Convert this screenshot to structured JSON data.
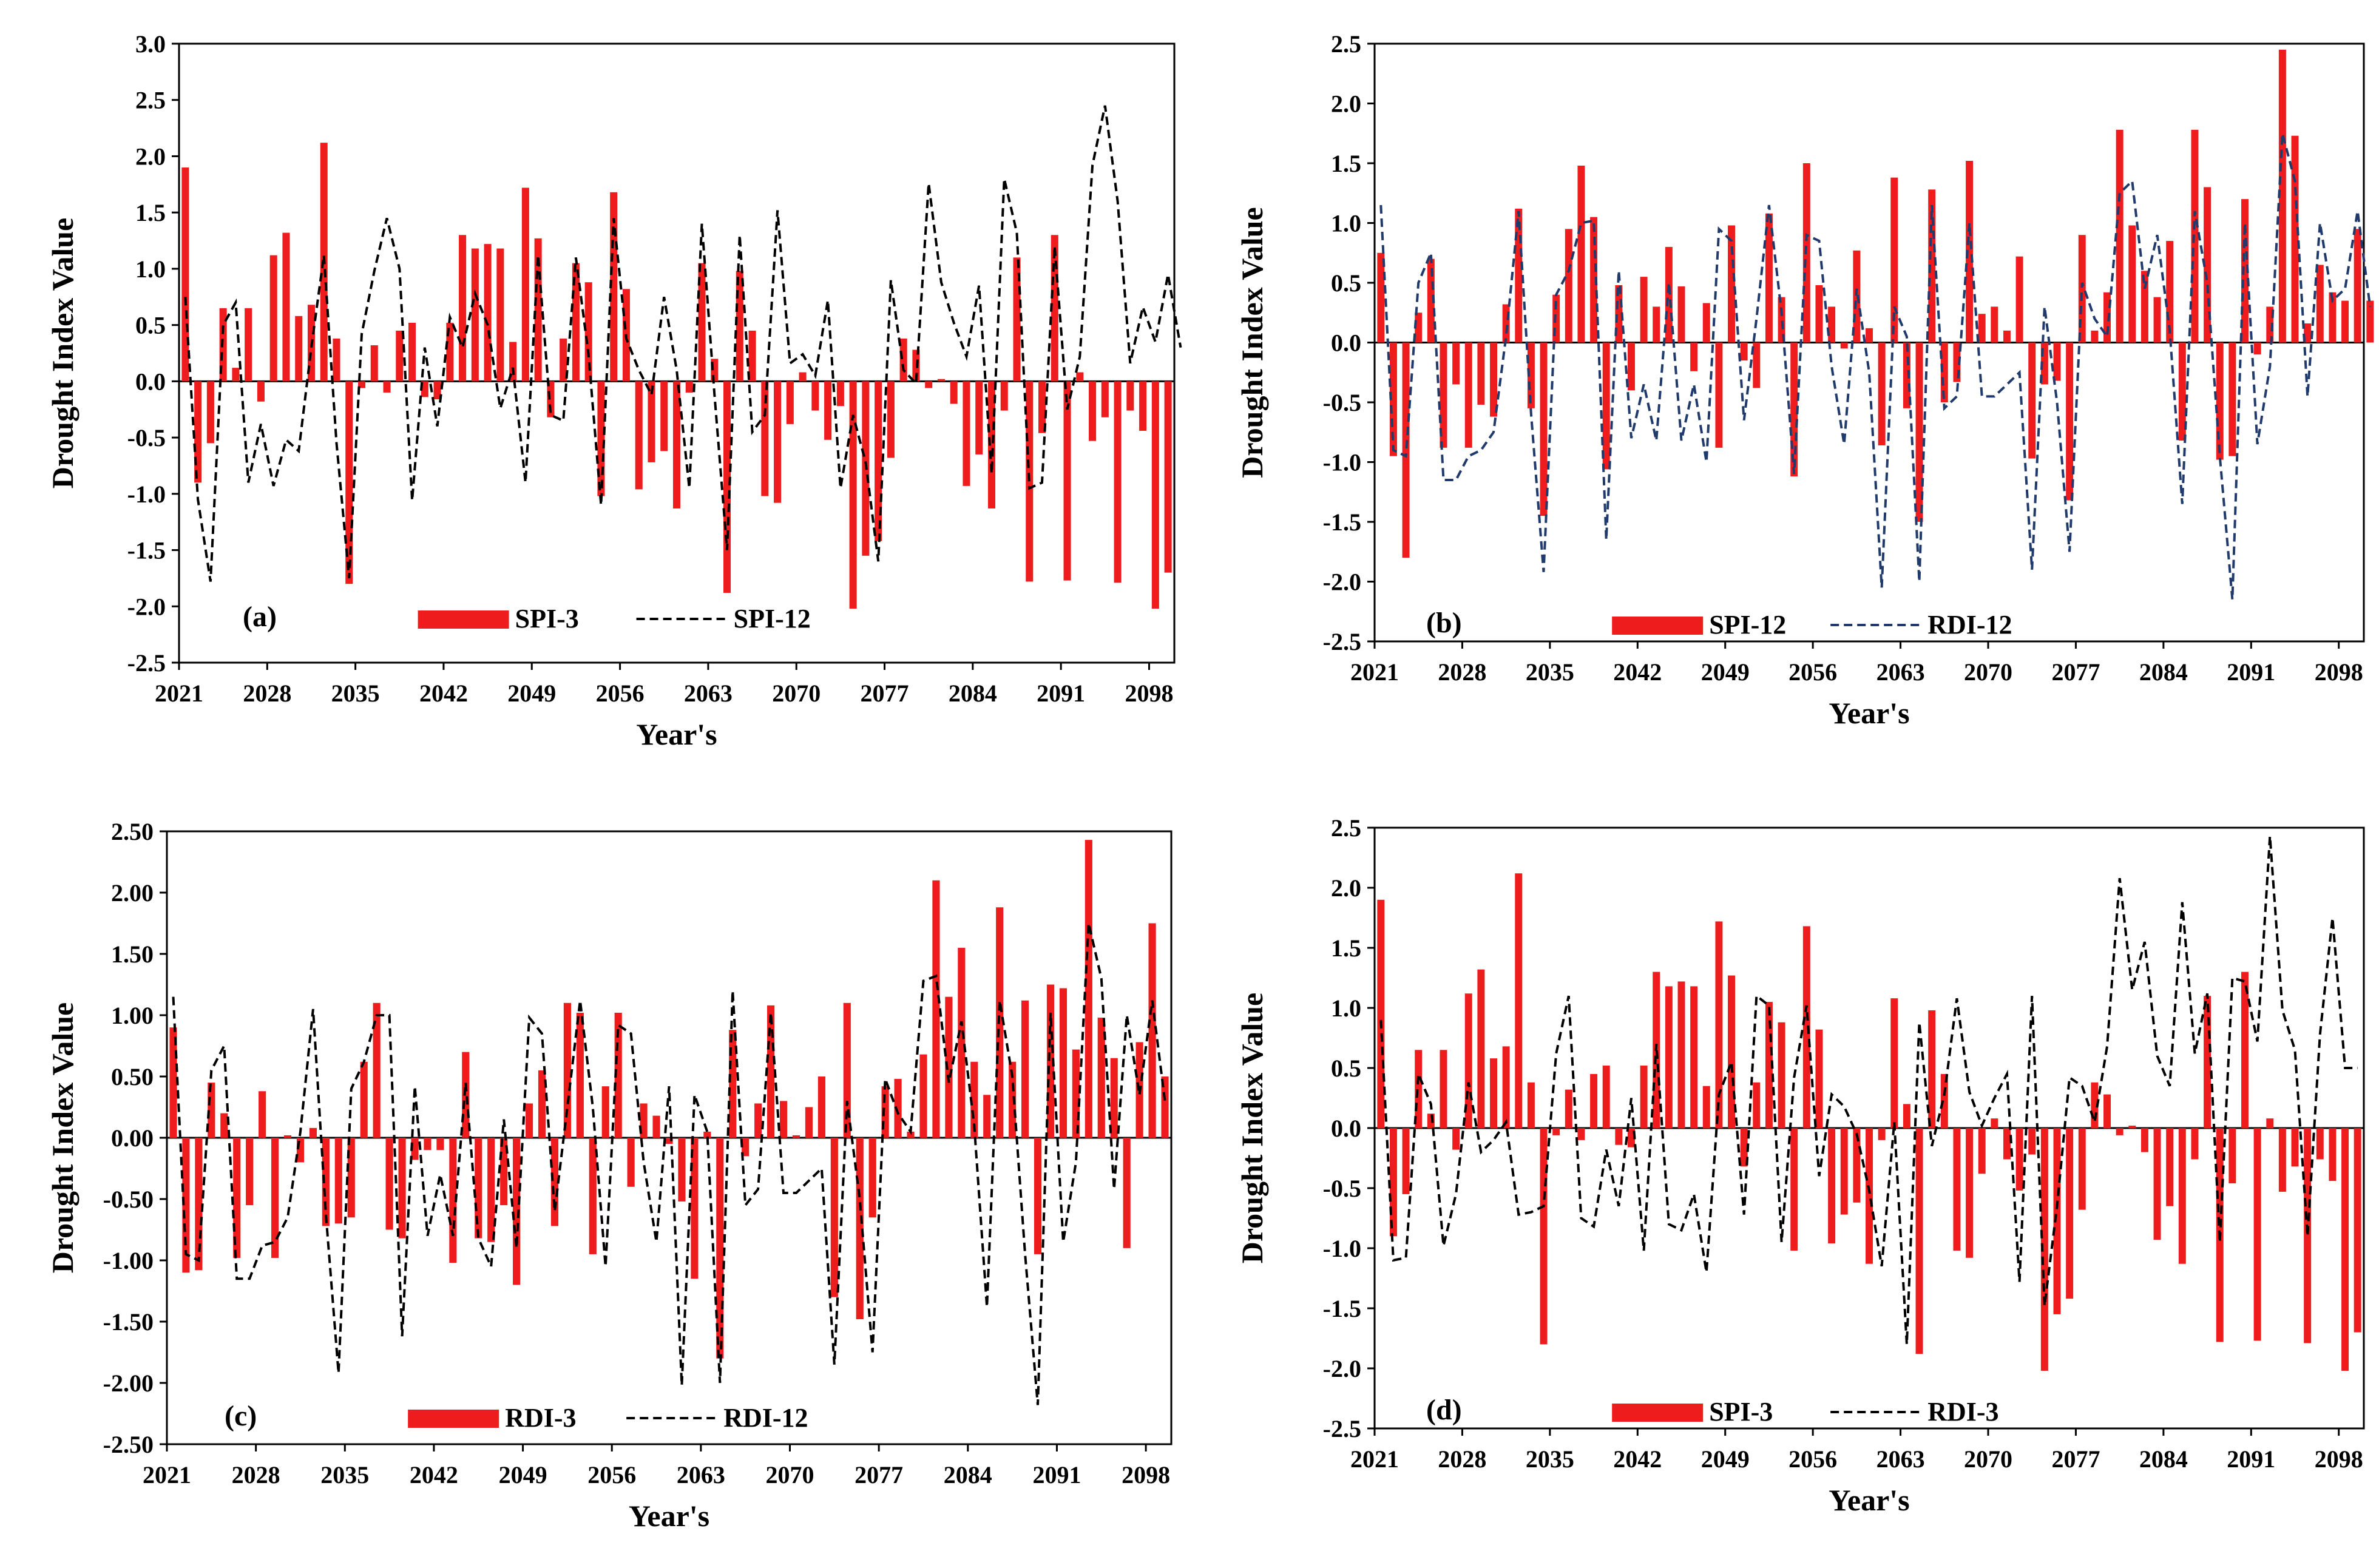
{
  "chart_data": [
    {
      "type": "bar",
      "panel_label": "(a)",
      "ylabel": "Drought Index Value",
      "xlabel": "Year's",
      "yticks": [
        "3.0",
        "2.5",
        "2.0",
        "1.5",
        "1.0",
        "0.5",
        "0.0",
        "-0.5",
        "-1.0",
        "-1.5",
        "-2.0",
        "-2.5"
      ],
      "xticks": [
        "2021",
        "2028",
        "2035",
        "2042",
        "2049",
        "2056",
        "2063",
        "2070",
        "2077",
        "2084",
        "2091",
        "2098"
      ],
      "ylim": [
        -2.5,
        3.0
      ],
      "xlim": [
        2021,
        2100
      ],
      "grid": false,
      "legend": {
        "position": "bottom",
        "entries": [
          "SPI-3",
          "SPI-12"
        ]
      },
      "series": [
        {
          "name": "SPI-3",
          "kind": "bar",
          "color": "#ee1c1c",
          "values": [
            1.9,
            -0.9,
            -0.55,
            0.65,
            0.12,
            0.65,
            -0.18,
            1.12,
            1.32,
            0.58,
            0.68,
            2.12,
            0.38,
            -1.8,
            -0.06,
            0.32,
            -0.1,
            0.45,
            0.52,
            -0.14,
            -0.16,
            0.52,
            1.3,
            1.18,
            1.22,
            1.18,
            0.35,
            1.72,
            1.27,
            -0.32,
            0.38,
            1.05,
            0.88,
            -1.02,
            1.68,
            0.82,
            -0.96,
            -0.72,
            -0.62,
            -1.13,
            -0.1,
            1.05,
            0.2,
            -1.88,
            0.98,
            0.45,
            -1.02,
            -1.08,
            -0.38,
            0.08,
            -0.26,
            -0.52,
            -0.22,
            -2.02,
            -1.55,
            -1.42,
            -0.68,
            0.38,
            0.28,
            -0.06,
            0.02,
            -0.2,
            -0.93,
            -0.65,
            -1.13,
            -0.26,
            1.1,
            -1.78,
            -0.46,
            1.3,
            -1.77,
            0.08,
            -0.53,
            -0.32,
            -1.79,
            -0.26,
            -0.44,
            -2.02,
            -1.7
          ]
        },
        {
          "name": "SPI-12",
          "kind": "line",
          "color": "#000000",
          "dash": "dashed",
          "values": [
            0.75,
            -1.05,
            -1.78,
            0.5,
            0.7,
            -0.9,
            -0.38,
            -0.93,
            -0.52,
            -0.62,
            0.3,
            1.12,
            -0.55,
            -1.75,
            0.42,
            0.98,
            1.45,
            1.0,
            -1.06,
            0.3,
            -0.4,
            0.57,
            0.3,
            0.78,
            0.5,
            -0.24,
            0.12,
            -0.9,
            1.12,
            -0.3,
            -0.35,
            1.1,
            0.24,
            -1.1,
            1.45,
            0.38,
            0.1,
            -0.12,
            0.75,
            0.1,
            -0.95,
            1.4,
            -0.12,
            -1.5,
            1.3,
            -0.45,
            -0.3,
            1.52,
            0.16,
            0.24,
            0.05,
            0.72,
            -0.95,
            -0.3,
            -0.72,
            -1.6,
            0.9,
            0.1,
            -0.02,
            1.76,
            0.88,
            0.52,
            0.22,
            0.85,
            -0.82,
            1.8,
            1.32,
            -0.95,
            -0.9,
            1.2,
            -0.25,
            0.22,
            1.92,
            2.45,
            1.6,
            0.16,
            0.66,
            0.35,
            0.95,
            0.3
          ]
        }
      ]
    },
    {
      "type": "bar",
      "panel_label": "(b)",
      "ylabel": "Drought Index Value",
      "xlabel": "Year's",
      "yticks": [
        "2.5",
        "2.0",
        "1.5",
        "1.0",
        "0.5",
        "0.0",
        "-0.5",
        "-1.0",
        "-1.5",
        "-2.0",
        "-2.5"
      ],
      "xticks": [
        "2021",
        "2028",
        "2035",
        "2042",
        "2049",
        "2056",
        "2063",
        "2070",
        "2077",
        "2084",
        "2091",
        "2098"
      ],
      "ylim": [
        -2.5,
        2.5
      ],
      "xlim": [
        2021,
        2100
      ],
      "grid": false,
      "legend": {
        "position": "bottom",
        "entries": [
          "SPI-12",
          "RDI-12"
        ]
      },
      "series": [
        {
          "name": "SPI-12",
          "kind": "bar",
          "color": "#ee1c1c",
          "values": [
            0.75,
            -0.95,
            -1.8,
            0.25,
            0.7,
            -0.88,
            -0.35,
            -0.88,
            -0.52,
            -0.62,
            0.32,
            1.12,
            -0.55,
            -1.45,
            0.4,
            0.95,
            1.48,
            1.05,
            -1.06,
            0.48,
            -0.4,
            0.55,
            0.3,
            0.8,
            0.47,
            -0.24,
            0.33,
            -0.88,
            0.98,
            -0.15,
            -0.38,
            1.08,
            0.38,
            -1.12,
            1.5,
            0.48,
            0.3,
            -0.05,
            0.77,
            0.12,
            -0.86,
            1.38,
            -0.55,
            -1.5,
            1.28,
            -0.5,
            -0.33,
            1.52,
            0.24,
            0.3,
            0.1,
            0.72,
            -0.97,
            -0.35,
            -0.32,
            -1.32,
            0.9,
            0.1,
            0.42,
            1.78,
            0.98,
            0.6,
            0.38,
            0.85,
            -0.82,
            1.78,
            1.3,
            -0.98,
            -0.95,
            1.2,
            -0.1,
            0.3,
            2.45,
            1.73,
            0.16,
            0.65,
            0.42,
            0.35,
            0.95,
            0.35
          ]
        },
        {
          "name": "RDI-12",
          "kind": "line",
          "color": "#1f3a6b",
          "dash": "dashed",
          "values": [
            1.15,
            -0.9,
            -0.95,
            0.5,
            0.75,
            -1.15,
            -1.15,
            -0.95,
            -0.9,
            -0.75,
            0.05,
            1.1,
            -0.6,
            -1.92,
            0.4,
            0.6,
            1.0,
            1.02,
            -1.65,
            0.6,
            -0.8,
            -0.35,
            -0.82,
            0.5,
            -0.82,
            -0.35,
            -1.0,
            0.95,
            0.85,
            -0.65,
            0.2,
            1.15,
            0.25,
            -1.1,
            0.9,
            0.85,
            -0.2,
            -0.85,
            0.45,
            -0.25,
            -2.05,
            0.3,
            0.05,
            -2.0,
            1.15,
            -0.55,
            -0.45,
            1.0,
            -0.45,
            -0.45,
            -0.35,
            -0.25,
            -1.9,
            0.3,
            -0.5,
            -1.75,
            0.5,
            0.2,
            0.05,
            1.25,
            1.35,
            0.45,
            0.9,
            0.1,
            -1.35,
            1.1,
            0.5,
            -0.95,
            -2.15,
            1.0,
            -0.85,
            -0.2,
            1.75,
            1.35,
            -0.45,
            1.0,
            0.35,
            0.45,
            1.1,
            0.3
          ]
        }
      ]
    },
    {
      "type": "bar",
      "panel_label": "(c)",
      "ylabel": "Drought Index Value",
      "xlabel": "Year's",
      "yticks": [
        "2.50",
        "2.00",
        "1.50",
        "1.00",
        "0.50",
        "0.00",
        "-0.50",
        "-1.00",
        "-1.50",
        "-2.00",
        "-2.50"
      ],
      "xticks": [
        "2021",
        "2028",
        "2035",
        "2042",
        "2049",
        "2056",
        "2063",
        "2070",
        "2077",
        "2084",
        "2091",
        "2098"
      ],
      "ylim": [
        -2.5,
        2.5
      ],
      "xlim": [
        2021,
        2100
      ],
      "grid": false,
      "legend": {
        "position": "bottom",
        "entries": [
          "RDI-3",
          "RDI-12"
        ]
      },
      "series": [
        {
          "name": "RDI-3",
          "kind": "bar",
          "color": "#ee1c1c",
          "values": [
            0.9,
            -1.1,
            -1.08,
            0.45,
            0.2,
            -0.98,
            -0.55,
            0.38,
            -0.98,
            0.02,
            -0.2,
            0.08,
            -0.72,
            -0.7,
            -0.65,
            0.62,
            1.1,
            -0.75,
            -0.82,
            -0.18,
            -0.1,
            -0.1,
            -1.02,
            0.7,
            -0.82,
            -0.85,
            -0.55,
            -1.2,
            0.28,
            0.55,
            -0.72,
            1.1,
            1.02,
            -0.95,
            0.42,
            1.02,
            -0.4,
            0.28,
            0.18,
            -0.05,
            -0.52,
            -1.15,
            0.05,
            -1.8,
            0.88,
            -0.15,
            0.28,
            1.08,
            0.3,
            0.02,
            0.25,
            0.5,
            -1.3,
            1.1,
            -1.48,
            -0.65,
            0.42,
            0.48,
            0.05,
            0.68,
            2.1,
            1.15,
            1.55,
            0.62,
            0.35,
            1.88,
            0.62,
            1.12,
            -0.95,
            1.25,
            1.22,
            0.72,
            2.43,
            0.98,
            0.65,
            -0.9,
            0.78,
            1.75,
            0.5
          ]
        },
        {
          "name": "RDI-12",
          "kind": "line",
          "color": "#000000",
          "dash": "dashed",
          "values": [
            1.15,
            -0.95,
            -1.0,
            0.55,
            0.75,
            -1.15,
            -1.15,
            -0.88,
            -0.85,
            -0.65,
            0.05,
            1.05,
            -0.62,
            -1.92,
            0.4,
            0.62,
            1.0,
            1.0,
            -1.62,
            0.42,
            -0.8,
            -0.3,
            -0.8,
            0.45,
            -0.82,
            -1.05,
            0.15,
            -0.9,
            0.98,
            0.85,
            -0.6,
            0.25,
            1.12,
            0.25,
            -1.05,
            0.92,
            0.85,
            -0.2,
            -0.85,
            0.42,
            -2.02,
            0.35,
            0.05,
            -2.0,
            1.2,
            -0.55,
            -0.42,
            1.02,
            -0.45,
            -0.45,
            -0.35,
            -0.25,
            -1.85,
            0.3,
            -0.5,
            -1.75,
            0.48,
            0.2,
            0.05,
            1.28,
            1.32,
            0.45,
            0.95,
            0.1,
            -1.38,
            1.12,
            0.5,
            -0.95,
            -2.18,
            1.02,
            -0.85,
            -0.2,
            1.75,
            1.3,
            -0.42,
            1.0,
            0.35,
            1.12,
            0.3
          ]
        }
      ]
    },
    {
      "type": "bar",
      "panel_label": "(d)",
      "ylabel": "Drought Index Value",
      "xlabel": "Year's",
      "yticks": [
        "2.5",
        "2.0",
        "1.5",
        "1.0",
        "0.5",
        "0.0",
        "-0.5",
        "-1.0",
        "-1.5",
        "-2.0",
        "-2.5"
      ],
      "xticks": [
        "2021",
        "2028",
        "2035",
        "2042",
        "2049",
        "2056",
        "2063",
        "2070",
        "2077",
        "2084",
        "2091",
        "2098"
      ],
      "ylim": [
        -2.5,
        2.5
      ],
      "xlim": [
        2021,
        2100
      ],
      "grid": false,
      "legend": {
        "position": "bottom",
        "entries": [
          "SPI-3",
          "RDI-3"
        ]
      },
      "series": [
        {
          "name": "SPI-3",
          "kind": "bar",
          "color": "#ee1c1c",
          "values": [
            1.9,
            -0.9,
            -0.55,
            0.65,
            0.12,
            0.65,
            -0.18,
            1.12,
            1.32,
            0.58,
            0.68,
            2.12,
            0.38,
            -1.8,
            -0.06,
            0.32,
            -0.1,
            0.45,
            0.52,
            -0.14,
            -0.16,
            0.52,
            1.3,
            1.18,
            1.22,
            1.18,
            0.35,
            1.72,
            1.27,
            -0.32,
            0.38,
            1.05,
            0.88,
            -1.02,
            1.68,
            0.82,
            -0.96,
            -0.72,
            -0.62,
            -1.13,
            -0.1,
            1.08,
            0.2,
            -1.88,
            0.98,
            0.45,
            -1.02,
            -1.08,
            -0.38,
            0.08,
            -0.26,
            -0.52,
            -0.22,
            -2.02,
            -1.55,
            -1.42,
            -0.68,
            0.38,
            0.28,
            -0.06,
            0.02,
            -0.2,
            -0.93,
            -0.65,
            -1.13,
            -0.26,
            1.1,
            -1.78,
            -0.46,
            1.3,
            -1.77,
            0.08,
            -0.53,
            -0.32,
            -1.79,
            -0.26,
            -0.44,
            -2.02,
            -1.7
          ]
        },
        {
          "name": "RDI-3",
          "kind": "line",
          "color": "#000000",
          "dash": "dashed",
          "values": [
            0.9,
            -1.1,
            -1.08,
            0.45,
            0.2,
            -0.98,
            -0.55,
            0.38,
            -0.2,
            -0.1,
            0.05,
            -0.72,
            -0.7,
            -0.65,
            0.62,
            1.1,
            -0.75,
            -0.82,
            -0.18,
            -0.65,
            0.25,
            -1.02,
            0.7,
            -0.8,
            -0.85,
            -0.55,
            -1.2,
            0.28,
            0.55,
            -0.72,
            1.1,
            1.02,
            -0.95,
            0.42,
            1.02,
            -0.4,
            0.28,
            0.18,
            -0.05,
            -0.52,
            -1.15,
            0.05,
            -1.8,
            0.88,
            -0.15,
            0.28,
            1.08,
            0.3,
            0.02,
            0.25,
            0.45,
            -1.28,
            1.1,
            -1.48,
            -0.65,
            0.42,
            0.35,
            0.05,
            0.68,
            2.08,
            1.15,
            1.55,
            0.6,
            0.35,
            1.88,
            0.62,
            1.12,
            -0.95,
            1.25,
            1.22,
            0.72,
            2.43,
            0.98,
            0.65,
            -0.9,
            0.78,
            1.75,
            0.5,
            0.5
          ]
        }
      ]
    }
  ]
}
